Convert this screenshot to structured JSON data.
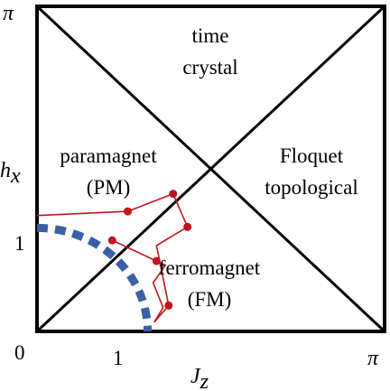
{
  "chart_data": {
    "type": "diagram",
    "xlabel_base": "J",
    "xlabel_sub": "z",
    "ylabel_base": "h",
    "ylabel_sub": "x",
    "xlim": [
      0,
      3.14159
    ],
    "ylim": [
      0,
      3.14159
    ],
    "ticks": {
      "origin": "0",
      "x_one": "1",
      "x_pi": "π",
      "y_one": "1",
      "y_pi": "π"
    },
    "regions": {
      "time_crystal": [
        "time",
        "crystal"
      ],
      "paramagnet": [
        "paramagnet",
        "(PM)"
      ],
      "floquet": [
        "Floquet",
        "topological"
      ],
      "ferromagnet": [
        "ferromagnet",
        "(FM)"
      ]
    },
    "diagonals": [
      {
        "x": [
          0,
          3.14159
        ],
        "y": [
          0,
          3.14159
        ]
      },
      {
        "x": [
          0,
          3.14159
        ],
        "y": [
          3.14159,
          0
        ]
      }
    ],
    "dashed_curve": {
      "color": "#3a5fa5",
      "shape": "quarter-circle",
      "radius": 1.0
    },
    "red_path": {
      "color": "#c0141e",
      "points": [
        [
          0.0,
          1.12
        ],
        [
          0.82,
          1.16
        ],
        [
          1.23,
          1.33
        ],
        [
          1.36,
          1.01
        ],
        [
          1.08,
          0.83
        ],
        [
          1.19,
          0.25
        ],
        [
          1.06,
          0.09
        ],
        [
          1.14,
          0.23
        ],
        [
          1.05,
          0.47
        ],
        [
          1.16,
          0.64
        ],
        [
          0.68,
          0.88
        ]
      ],
      "marked_points": [
        [
          0.82,
          1.16
        ],
        [
          1.23,
          1.33
        ],
        [
          1.36,
          1.01
        ],
        [
          1.08,
          0.68
        ],
        [
          1.19,
          0.25
        ],
        [
          0.68,
          0.88
        ]
      ]
    }
  }
}
